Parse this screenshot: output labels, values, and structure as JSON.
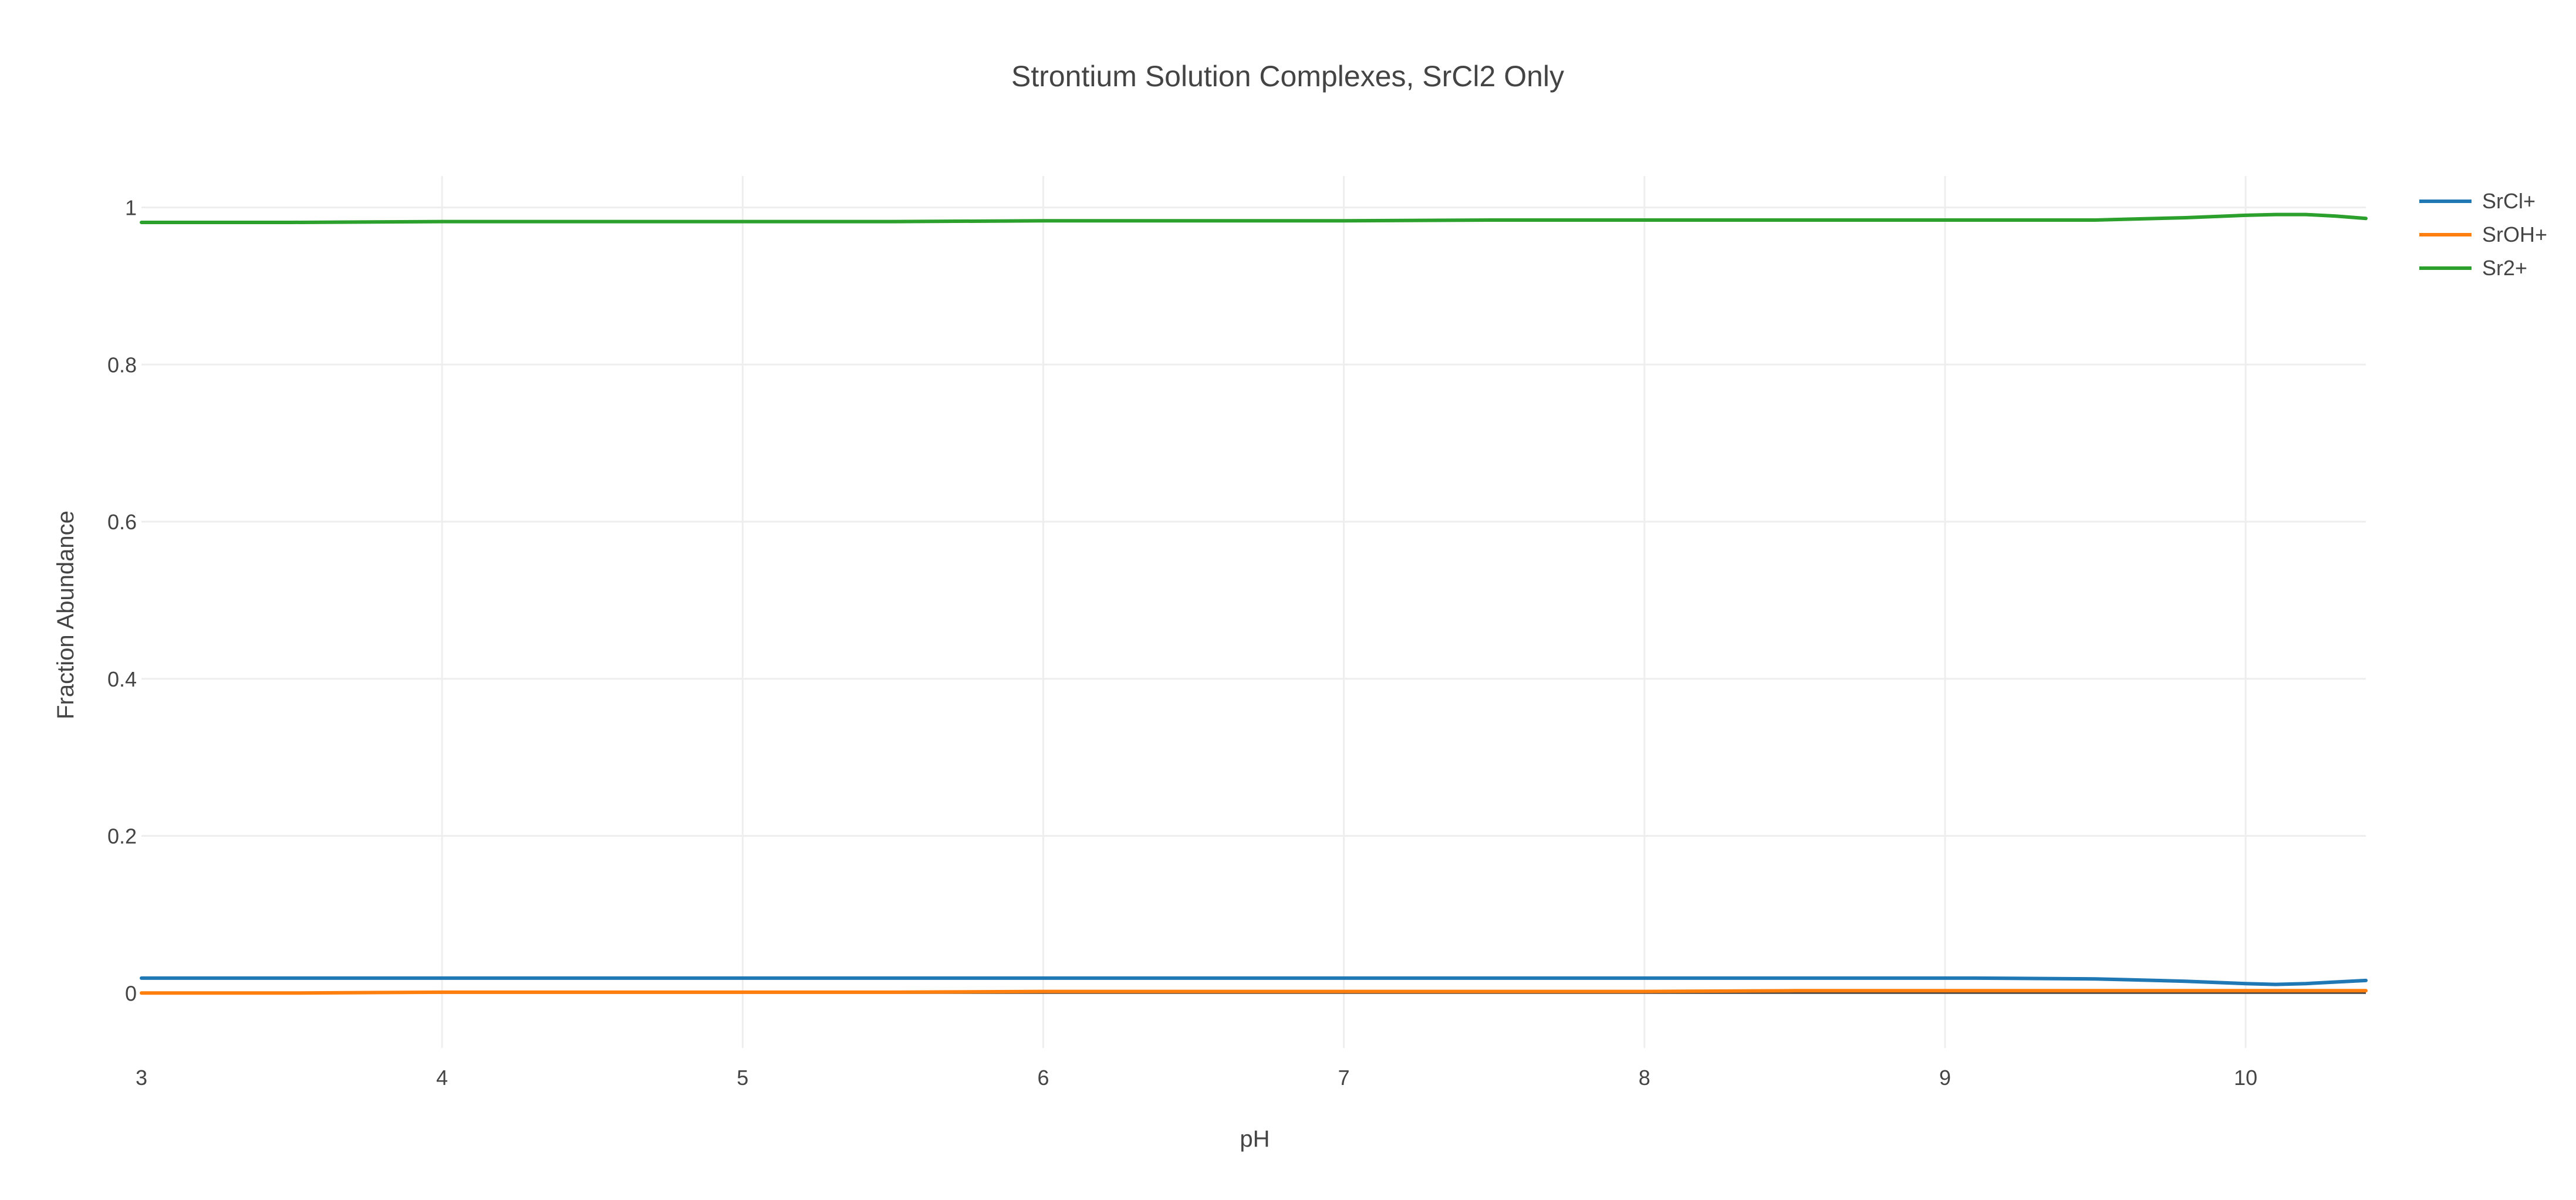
{
  "chart_data": {
    "type": "line",
    "title": "Strontium Solution Complexes, SrCl2 Only",
    "xlabel": "pH",
    "ylabel": "Fraction Abundance",
    "xlim": [
      3,
      10.4
    ],
    "ylim": [
      -0.07,
      1.04
    ],
    "xticks": [
      3,
      4,
      5,
      6,
      7,
      8,
      9,
      10
    ],
    "xtick_labels": [
      "3",
      "4",
      "5",
      "6",
      "7",
      "8",
      "9",
      "10"
    ],
    "yticks": [
      0,
      0.2,
      0.4,
      0.6,
      0.8,
      1
    ],
    "ytick_labels": [
      "0",
      "0.2",
      "0.4",
      "0.6",
      "0.8",
      "1"
    ],
    "grid": true,
    "legend_position": "top-right",
    "x": [
      3,
      3.5,
      4,
      4.5,
      5,
      5.5,
      6,
      6.5,
      7,
      7.5,
      8,
      8.5,
      9,
      9.1,
      9.5,
      9.6,
      9.8,
      10,
      10.1,
      10.2,
      10.3,
      10.4
    ],
    "series": [
      {
        "name": "SrCl+",
        "color": "#1f77b4",
        "values": [
          0.019,
          0.019,
          0.019,
          0.019,
          0.019,
          0.019,
          0.019,
          0.019,
          0.019,
          0.019,
          0.019,
          0.019,
          0.019,
          0.019,
          0.018,
          0.017,
          0.015,
          0.012,
          0.011,
          0.012,
          0.014,
          0.016
        ]
      },
      {
        "name": "SrOH+",
        "color": "#ff7f0e",
        "values": [
          0.0,
          0.0,
          0.001,
          0.001,
          0.001,
          0.001,
          0.002,
          0.002,
          0.002,
          0.002,
          0.002,
          0.003,
          0.003,
          0.003,
          0.003,
          0.003,
          0.003,
          0.003,
          0.003,
          0.003,
          0.003,
          0.003
        ]
      },
      {
        "name": "Sr2+",
        "color": "#2ca02c",
        "values": [
          0.981,
          0.981,
          0.982,
          0.982,
          0.982,
          0.982,
          0.983,
          0.983,
          0.983,
          0.984,
          0.984,
          0.984,
          0.984,
          0.984,
          0.984,
          0.985,
          0.987,
          0.99,
          0.991,
          0.991,
          0.989,
          0.986
        ]
      }
    ]
  }
}
